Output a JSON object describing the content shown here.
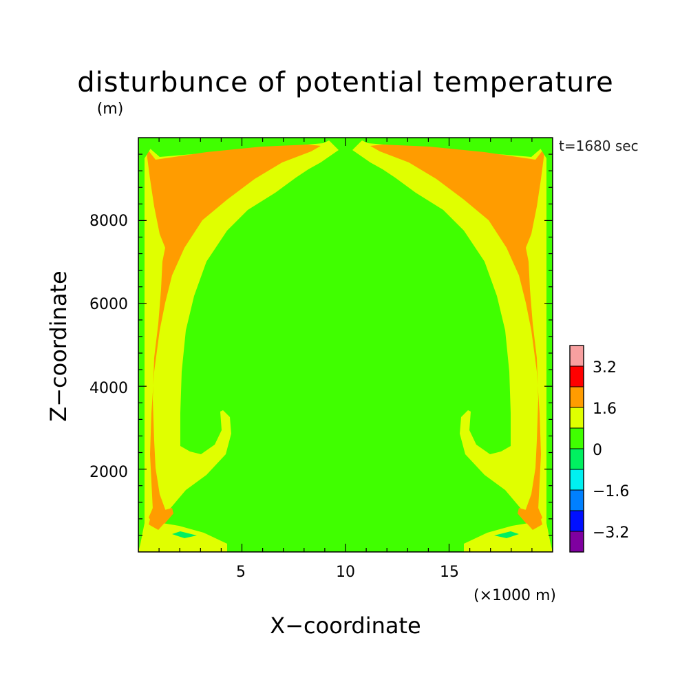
{
  "chart_data": {
    "type": "heatmap",
    "title": "disturbunce of potential temperature",
    "time_label": "t=1680 sec",
    "x_axis": {
      "label": "X−coordinate",
      "unit": "(×1000 m)",
      "range": [
        0,
        20
      ],
      "ticks": [
        5,
        10,
        15
      ],
      "tick_labels": [
        "5",
        "10",
        "15"
      ]
    },
    "y_axis": {
      "label": "Z−coordinate",
      "unit": "(m)",
      "range": [
        0,
        10000
      ],
      "ticks": [
        2000,
        4000,
        6000,
        8000
      ],
      "tick_labels": [
        "2000",
        "4000",
        "6000",
        "8000"
      ]
    },
    "colorbar": {
      "levels": [
        -4.0,
        -3.2,
        -2.4,
        -1.6,
        -0.8,
        0,
        0.8,
        1.6,
        2.4,
        3.2,
        4.0
      ],
      "colors": [
        "#7f00a0",
        "#0010ff",
        "#0080ff",
        "#00f0f0",
        "#00f060",
        "#40ff00",
        "#e0ff00",
        "#ff9c00",
        "#ff0000",
        "#f8a0a0"
      ],
      "tick_values": [
        -3.2,
        -1.6,
        0,
        1.6,
        3.2
      ],
      "tick_labels": [
        "−3.2",
        "−1.6",
        "0",
        "1.6",
        "3.2"
      ]
    },
    "regions": {
      "background": 0.4,
      "warm_plume": 1.2,
      "hot_core": 2.0
    }
  }
}
